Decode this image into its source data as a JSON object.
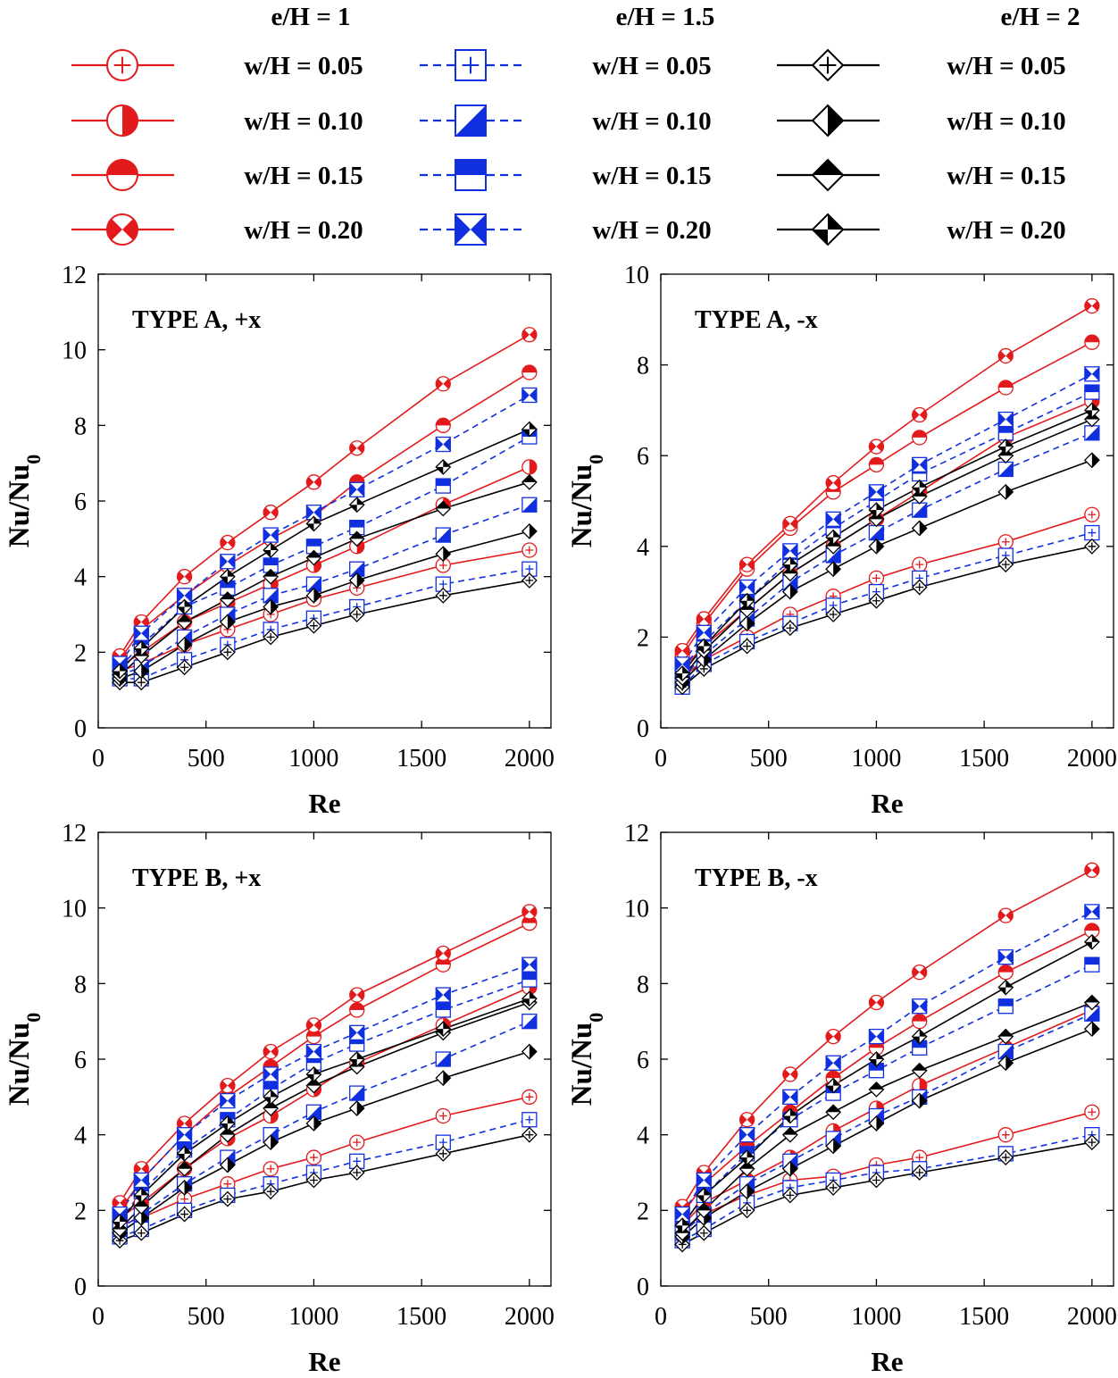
{
  "legend": {
    "groups": [
      {
        "title": "e/H = 1",
        "color": "#e31a1c",
        "dashed": false,
        "shape": "circle",
        "entries": [
          "w/H = 0.05",
          "w/H = 0.10",
          "w/H = 0.15",
          "w/H = 0.20"
        ]
      },
      {
        "title": "e/H = 1.5",
        "color": "#1030e0",
        "dashed": true,
        "shape": "square",
        "entries": [
          "w/H = 0.05",
          "w/H = 0.10",
          "w/H = 0.15",
          "w/H = 0.20"
        ]
      },
      {
        "title": "e/H = 2",
        "color": "#000000",
        "dashed": false,
        "shape": "diamond",
        "entries": [
          "w/H = 0.05",
          "w/H = 0.10",
          "w/H = 0.15",
          "w/H = 0.20"
        ]
      }
    ],
    "fill_patterns": [
      "plus",
      "half-right",
      "half-top",
      "bowtie"
    ]
  },
  "chart_data": [
    {
      "type": "line",
      "title": "TYPE A, +x",
      "xlabel": "Re",
      "ylabel": "Nu/Nu",
      "ylabel_subscript": "0",
      "xlim": [
        0,
        2100
      ],
      "ylim": [
        0,
        12
      ],
      "xticks": [
        0,
        500,
        1000,
        1500,
        2000
      ],
      "yticks": [
        0,
        2,
        4,
        6,
        8,
        10,
        12
      ],
      "x": [
        100,
        200,
        400,
        600,
        800,
        1000,
        1200,
        1600,
        2000
      ],
      "series": [
        {
          "name": "e/H = 1, w/H = 0.05",
          "values": [
            1.5,
            1.7,
            2.2,
            2.6,
            3.0,
            3.4,
            3.7,
            4.3,
            4.7
          ]
        },
        {
          "name": "e/H = 1, w/H = 0.10",
          "values": [
            1.6,
            2.0,
            2.8,
            3.3,
            3.8,
            4.3,
            4.8,
            5.9,
            6.9
          ]
        },
        {
          "name": "e/H = 1, w/H = 0.15",
          "values": [
            1.8,
            2.6,
            3.5,
            4.3,
            5.0,
            5.6,
            6.5,
            8.0,
            9.4
          ]
        },
        {
          "name": "e/H = 1, w/H = 0.20",
          "values": [
            1.9,
            2.8,
            4.0,
            4.9,
            5.7,
            6.5,
            7.4,
            9.1,
            10.4
          ]
        },
        {
          "name": "e/H = 1.5, w/H = 0.05",
          "values": [
            1.3,
            1.3,
            1.8,
            2.2,
            2.6,
            2.9,
            3.2,
            3.8,
            4.2
          ]
        },
        {
          "name": "e/H = 1.5, w/H = 0.10",
          "values": [
            1.4,
            1.6,
            2.4,
            3.0,
            3.5,
            3.8,
            4.2,
            5.1,
            5.9
          ]
        },
        {
          "name": "e/H = 1.5, w/H = 0.15",
          "values": [
            1.6,
            2.2,
            3.2,
            3.7,
            4.3,
            4.8,
            5.3,
            6.4,
            7.7
          ]
        },
        {
          "name": "e/H = 1.5, w/H = 0.20",
          "values": [
            1.7,
            2.5,
            3.5,
            4.4,
            5.1,
            5.7,
            6.3,
            7.5,
            8.8
          ]
        },
        {
          "name": "e/H = 2, w/H = 0.05",
          "values": [
            1.2,
            1.2,
            1.6,
            2.0,
            2.4,
            2.7,
            3.0,
            3.5,
            3.9
          ]
        },
        {
          "name": "e/H = 2, w/H = 0.10",
          "values": [
            1.3,
            1.5,
            2.2,
            2.8,
            3.2,
            3.5,
            3.9,
            4.6,
            5.2
          ]
        },
        {
          "name": "e/H = 2, w/H = 0.15",
          "values": [
            1.4,
            1.9,
            2.8,
            3.4,
            4.0,
            4.5,
            5.0,
            5.8,
            6.5
          ]
        },
        {
          "name": "e/H = 2, w/H = 0.20",
          "values": [
            1.5,
            2.1,
            3.2,
            4.0,
            4.7,
            5.4,
            5.9,
            6.9,
            7.9
          ]
        }
      ]
    },
    {
      "type": "line",
      "title": "TYPE A, -x",
      "xlabel": "Re",
      "ylabel": "Nu/Nu",
      "ylabel_subscript": "0",
      "xlim": [
        0,
        2100
      ],
      "ylim": [
        0,
        10
      ],
      "xticks": [
        0,
        500,
        1000,
        1500,
        2000
      ],
      "yticks": [
        0,
        2,
        4,
        6,
        8,
        10
      ],
      "x": [
        100,
        200,
        400,
        600,
        800,
        1000,
        1200,
        1600,
        2000
      ],
      "series": [
        {
          "name": "e/H = 1, w/H = 0.05",
          "values": [
            1.1,
            1.5,
            2.0,
            2.5,
            2.9,
            3.3,
            3.6,
            4.1,
            4.7
          ]
        },
        {
          "name": "e/H = 1, w/H = 0.10",
          "values": [
            1.3,
            1.8,
            2.6,
            3.4,
            4.0,
            4.6,
            5.2,
            6.4,
            7.2
          ]
        },
        {
          "name": "e/H = 1, w/H = 0.15",
          "values": [
            1.6,
            2.3,
            3.5,
            4.4,
            5.2,
            5.8,
            6.4,
            7.5,
            8.5
          ]
        },
        {
          "name": "e/H = 1, w/H = 0.20",
          "values": [
            1.7,
            2.4,
            3.6,
            4.5,
            5.4,
            6.2,
            6.9,
            8.2,
            9.3
          ]
        },
        {
          "name": "e/H = 1.5, w/H = 0.05",
          "values": [
            0.9,
            1.4,
            1.9,
            2.3,
            2.7,
            3.0,
            3.3,
            3.8,
            4.3
          ]
        },
        {
          "name": "e/H = 1.5, w/H = 0.10",
          "values": [
            1.1,
            1.6,
            2.4,
            3.2,
            3.8,
            4.3,
            4.8,
            5.7,
            6.5
          ]
        },
        {
          "name": "e/H = 1.5, w/H = 0.15",
          "values": [
            1.3,
            1.9,
            2.8,
            3.7,
            4.4,
            5.0,
            5.6,
            6.5,
            7.4
          ]
        },
        {
          "name": "e/H = 1.5, w/H = 0.20",
          "values": [
            1.4,
            2.1,
            3.1,
            3.9,
            4.6,
            5.2,
            5.8,
            6.8,
            7.8
          ]
        },
        {
          "name": "e/H = 2, w/H = 0.05",
          "values": [
            0.9,
            1.3,
            1.8,
            2.2,
            2.5,
            2.8,
            3.1,
            3.6,
            4.0
          ]
        },
        {
          "name": "e/H = 2, w/H = 0.10",
          "values": [
            1.0,
            1.5,
            2.3,
            3.0,
            3.5,
            4.0,
            4.4,
            5.2,
            5.9
          ]
        },
        {
          "name": "e/H = 2, w/H = 0.15",
          "values": [
            1.1,
            1.7,
            2.6,
            3.4,
            4.0,
            4.6,
            5.1,
            6.0,
            6.8
          ]
        },
        {
          "name": "e/H = 2, w/H = 0.20",
          "values": [
            1.2,
            1.8,
            2.8,
            3.6,
            4.2,
            4.8,
            5.3,
            6.2,
            7.0
          ]
        }
      ]
    },
    {
      "type": "line",
      "title": "TYPE B, +x",
      "xlabel": "Re",
      "ylabel": "Nu/Nu",
      "ylabel_subscript": "0",
      "xlim": [
        0,
        2100
      ],
      "ylim": [
        0,
        12
      ],
      "xticks": [
        0,
        500,
        1000,
        1500,
        2000
      ],
      "yticks": [
        0,
        2,
        4,
        6,
        8,
        10,
        12
      ],
      "x": [
        100,
        200,
        400,
        600,
        800,
        1000,
        1200,
        1600,
        2000
      ],
      "series": [
        {
          "name": "e/H = 1, w/H = 0.05",
          "values": [
            1.6,
            1.8,
            2.3,
            2.7,
            3.1,
            3.4,
            3.8,
            4.5,
            5.0
          ]
        },
        {
          "name": "e/H = 1, w/H = 0.10",
          "values": [
            1.8,
            2.2,
            3.1,
            3.9,
            4.5,
            5.2,
            5.9,
            6.9,
            7.9
          ]
        },
        {
          "name": "e/H = 1, w/H = 0.15",
          "values": [
            2.0,
            2.8,
            4.0,
            5.0,
            5.8,
            6.6,
            7.3,
            8.5,
            9.6
          ]
        },
        {
          "name": "e/H = 1, w/H = 0.20",
          "values": [
            2.2,
            3.1,
            4.3,
            5.3,
            6.2,
            6.9,
            7.7,
            8.8,
            9.9
          ]
        },
        {
          "name": "e/H = 1.5, w/H = 0.05",
          "values": [
            1.3,
            1.5,
            2.0,
            2.4,
            2.7,
            3.0,
            3.3,
            3.8,
            4.4
          ]
        },
        {
          "name": "e/H = 1.5, w/H = 0.10",
          "values": [
            1.5,
            1.9,
            2.7,
            3.4,
            4.0,
            4.6,
            5.1,
            6.0,
            7.0
          ]
        },
        {
          "name": "e/H = 1.5, w/H = 0.15",
          "values": [
            1.7,
            2.5,
            3.6,
            4.4,
            5.2,
            5.9,
            6.4,
            7.3,
            8.1
          ]
        },
        {
          "name": "e/H = 1.5, w/H = 0.20",
          "values": [
            1.9,
            2.8,
            4.0,
            4.9,
            5.6,
            6.2,
            6.7,
            7.7,
            8.5
          ]
        },
        {
          "name": "e/H = 2, w/H = 0.05",
          "values": [
            1.2,
            1.4,
            1.9,
            2.3,
            2.5,
            2.8,
            3.0,
            3.5,
            4.0
          ]
        },
        {
          "name": "e/H = 2, w/H = 0.10",
          "values": [
            1.4,
            1.8,
            2.6,
            3.2,
            3.8,
            4.3,
            4.7,
            5.5,
            6.2
          ]
        },
        {
          "name": "e/H = 2, w/H = 0.15",
          "values": [
            1.5,
            2.1,
            3.1,
            4.0,
            4.7,
            5.3,
            5.8,
            6.7,
            7.5
          ]
        },
        {
          "name": "e/H = 2, w/H = 0.20",
          "values": [
            1.7,
            2.4,
            3.5,
            4.3,
            5.0,
            5.6,
            6.0,
            6.8,
            7.6
          ]
        }
      ]
    },
    {
      "type": "line",
      "title": "TYPE B, -x",
      "xlabel": "Re",
      "ylabel": "Nu/Nu",
      "ylabel_subscript": "0",
      "xlim": [
        0,
        2100
      ],
      "ylim": [
        0,
        12
      ],
      "xticks": [
        0,
        500,
        1000,
        1500,
        2000
      ],
      "yticks": [
        0,
        2,
        4,
        6,
        8,
        10,
        12
      ],
      "x": [
        100,
        200,
        400,
        600,
        800,
        1000,
        1200,
        1600,
        2000
      ],
      "series": [
        {
          "name": "e/H = 1, w/H = 0.05",
          "values": [
            1.5,
            1.9,
            2.4,
            2.8,
            2.9,
            3.2,
            3.4,
            4.0,
            4.6
          ]
        },
        {
          "name": "e/H = 1, w/H = 0.10",
          "values": [
            1.6,
            2.2,
            2.8,
            3.4,
            4.1,
            4.7,
            5.3,
            6.3,
            7.3
          ]
        },
        {
          "name": "e/H = 1, w/H = 0.15",
          "values": [
            1.9,
            2.7,
            3.7,
            4.6,
            5.5,
            6.3,
            7.0,
            8.3,
            9.4
          ]
        },
        {
          "name": "e/H = 1, w/H = 0.20",
          "values": [
            2.1,
            3.0,
            4.4,
            5.6,
            6.6,
            7.5,
            8.3,
            9.8,
            11.0
          ]
        },
        {
          "name": "e/H = 1.5, w/H = 0.05",
          "values": [
            1.2,
            1.5,
            2.2,
            2.6,
            2.8,
            3.0,
            3.1,
            3.5,
            4.0
          ]
        },
        {
          "name": "e/H = 1.5, w/H = 0.10",
          "values": [
            1.4,
            1.9,
            2.7,
            3.3,
            3.9,
            4.5,
            5.0,
            6.2,
            7.2
          ]
        },
        {
          "name": "e/H = 1.5, w/H = 0.15",
          "values": [
            1.6,
            2.4,
            3.5,
            4.4,
            5.1,
            5.7,
            6.3,
            7.4,
            8.5
          ]
        },
        {
          "name": "e/H = 1.5, w/H = 0.20",
          "values": [
            1.9,
            2.8,
            4.0,
            5.0,
            5.9,
            6.6,
            7.4,
            8.7,
            9.9
          ]
        },
        {
          "name": "e/H = 2, w/H = 0.05",
          "values": [
            1.1,
            1.4,
            2.0,
            2.4,
            2.6,
            2.8,
            3.0,
            3.4,
            3.8
          ]
        },
        {
          "name": "e/H = 2, w/H = 0.10",
          "values": [
            1.3,
            1.8,
            2.5,
            3.1,
            3.7,
            4.3,
            4.9,
            5.9,
            6.8
          ]
        },
        {
          "name": "e/H = 2, w/H = 0.15",
          "values": [
            1.4,
            2.0,
            3.1,
            4.0,
            4.6,
            5.2,
            5.7,
            6.6,
            7.5
          ]
        },
        {
          "name": "e/H = 2, w/H = 0.20",
          "values": [
            1.6,
            2.4,
            3.4,
            4.5,
            5.3,
            6.0,
            6.6,
            7.9,
            9.1
          ]
        }
      ]
    }
  ]
}
